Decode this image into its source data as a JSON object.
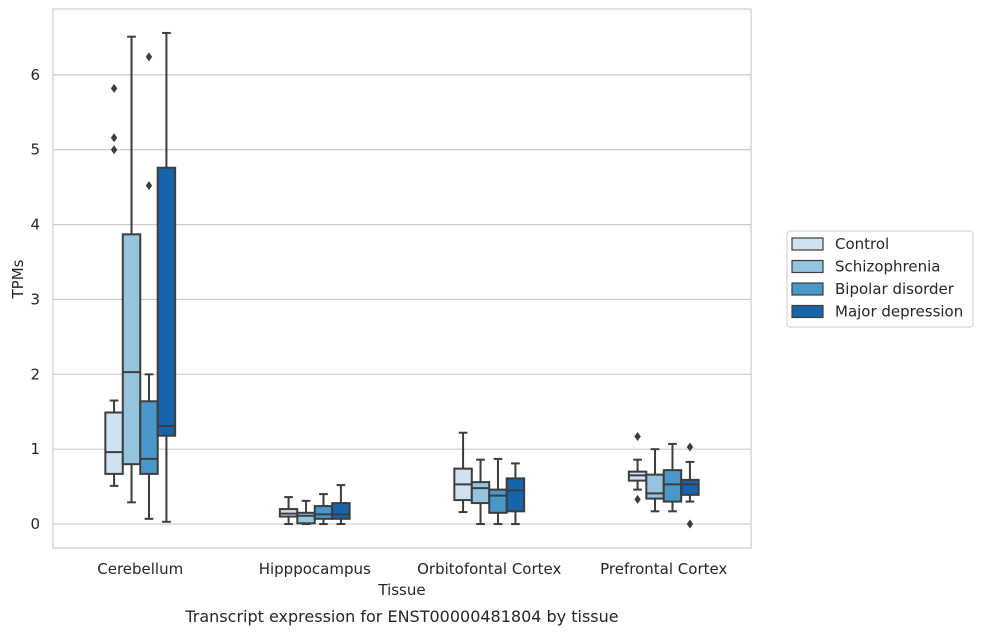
{
  "caption": "Transcript expression for ENST00000481804 by tissue",
  "chart_data": {
    "type": "boxplot",
    "title": "",
    "xlabel": "Tissue",
    "ylabel": "TPMs",
    "ylim": [
      -0.32,
      6.88
    ],
    "yticks": [
      0,
      1,
      2,
      3,
      4,
      5,
      6
    ],
    "grid": "horizontal",
    "legend_position": "right",
    "categories": [
      "Cerebellum",
      "Hipppocampus",
      "Orbitofontal Cortex",
      "Prefrontal Cortex"
    ],
    "series": [
      {
        "name": "Control",
        "color": "#d0e1f2",
        "boxes": [
          {
            "whislo": 0.51,
            "q1": 0.67,
            "med": 0.96,
            "q3": 1.49,
            "whishi": 1.65,
            "fliers": [
              5.0,
              5.16,
              5.82
            ]
          },
          {
            "whislo": 0.0,
            "q1": 0.1,
            "med": 0.14,
            "q3": 0.2,
            "whishi": 0.36,
            "fliers": []
          },
          {
            "whislo": 0.16,
            "q1": 0.32,
            "med": 0.53,
            "q3": 0.74,
            "whishi": 1.22,
            "fliers": []
          },
          {
            "whislo": 0.46,
            "q1": 0.58,
            "med": 0.65,
            "q3": 0.7,
            "whishi": 0.86,
            "fliers": [
              0.33,
              1.17
            ]
          }
        ]
      },
      {
        "name": "Schizophrenia",
        "color": "#94c4df",
        "boxes": [
          {
            "whislo": 0.29,
            "q1": 0.8,
            "med": 2.03,
            "q3": 3.87,
            "whishi": 6.51,
            "fliers": []
          },
          {
            "whislo": 0.0,
            "q1": 0.01,
            "med": 0.11,
            "q3": 0.15,
            "whishi": 0.31,
            "fliers": []
          },
          {
            "whislo": 0.0,
            "q1": 0.28,
            "med": 0.48,
            "q3": 0.56,
            "whishi": 0.86,
            "fliers": []
          },
          {
            "whislo": 0.17,
            "q1": 0.34,
            "med": 0.41,
            "q3": 0.66,
            "whishi": 1.0,
            "fliers": []
          }
        ]
      },
      {
        "name": "Bipolar disorder",
        "color": "#4a98c9",
        "boxes": [
          {
            "whislo": 0.07,
            "q1": 0.67,
            "med": 0.87,
            "q3": 1.64,
            "whishi": 2.0,
            "fliers": [
              4.52,
              6.24
            ]
          },
          {
            "whislo": 0.0,
            "q1": 0.07,
            "med": 0.13,
            "q3": 0.24,
            "whishi": 0.4,
            "fliers": []
          },
          {
            "whislo": 0.0,
            "q1": 0.15,
            "med": 0.38,
            "q3": 0.46,
            "whishi": 0.87,
            "fliers": []
          },
          {
            "whislo": 0.17,
            "q1": 0.3,
            "med": 0.53,
            "q3": 0.72,
            "whishi": 1.07,
            "fliers": []
          }
        ]
      },
      {
        "name": "Major depression",
        "color": "#1764ab",
        "boxes": [
          {
            "whislo": 0.03,
            "q1": 1.18,
            "med": 1.31,
            "q3": 4.76,
            "whishi": 6.56,
            "fliers": []
          },
          {
            "whislo": 0.0,
            "q1": 0.07,
            "med": 0.13,
            "q3": 0.28,
            "whishi": 0.52,
            "fliers": []
          },
          {
            "whislo": 0.0,
            "q1": 0.17,
            "med": 0.45,
            "q3": 0.61,
            "whishi": 0.81,
            "fliers": []
          },
          {
            "whislo": 0.3,
            "q1": 0.39,
            "med": 0.53,
            "q3": 0.59,
            "whishi": 0.83,
            "fliers": [
              0.0,
              1.03
            ]
          }
        ]
      }
    ]
  }
}
